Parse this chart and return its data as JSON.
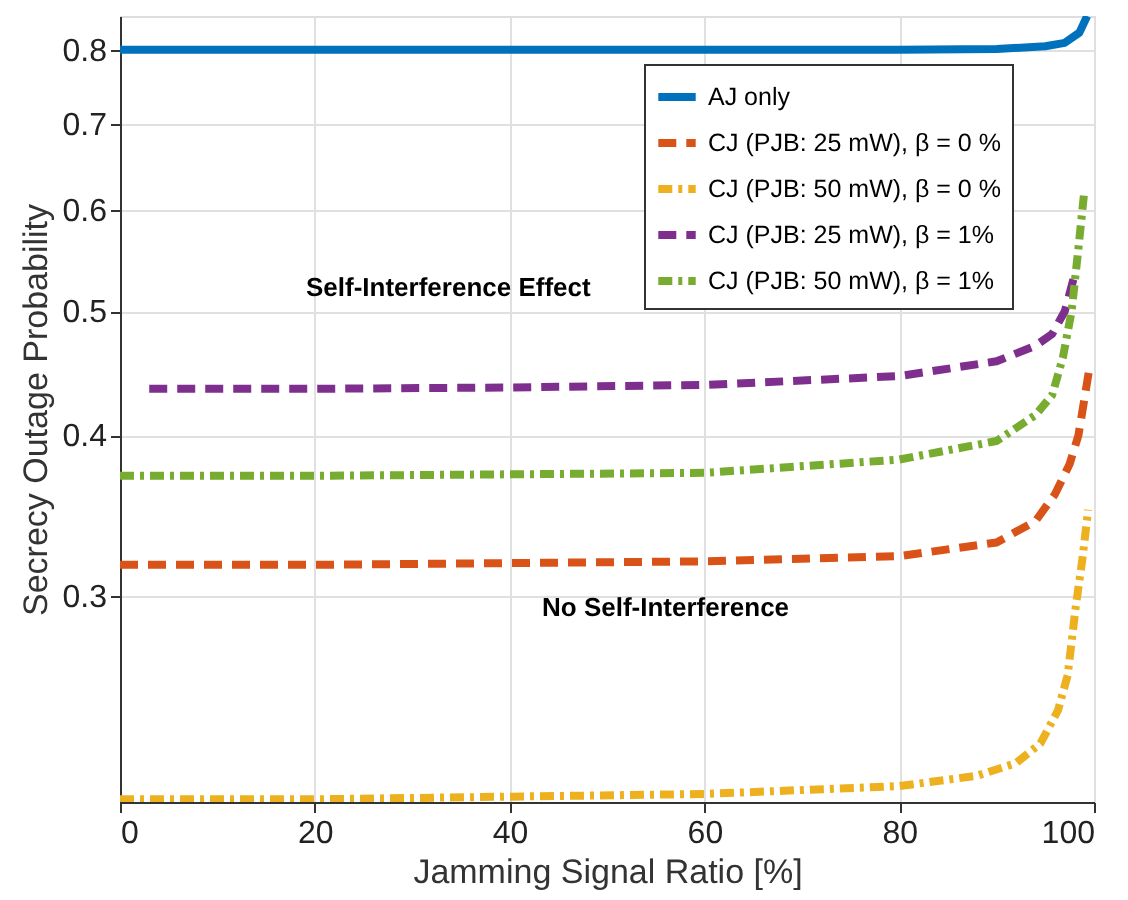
{
  "chart_data": {
    "type": "line",
    "xlabel": "Jamming Signal Ratio [%]",
    "ylabel": "Secrecy Outage Probability",
    "xlim": [
      0,
      100
    ],
    "xticks": [
      0,
      20,
      40,
      60,
      80,
      100
    ],
    "ylim": [
      0.207,
      0.85
    ],
    "yticks": [
      0.3,
      0.4,
      0.5,
      0.6,
      0.7,
      0.8
    ],
    "log": "y",
    "grid": true,
    "legend": "top right",
    "series": [
      {
        "name": "AJ only",
        "color": "#0072bd",
        "line_style": "solid",
        "x": [
          0,
          20,
          40,
          60,
          80,
          90,
          95,
          97,
          98.5,
          99.3
        ],
        "values": [
          0.8,
          0.8,
          0.8,
          0.8,
          0.8,
          0.801,
          0.805,
          0.81,
          0.825,
          0.85
        ]
      },
      {
        "name": "CJ (PJB: 25 mW), β = 0 %",
        "color": "#d95319",
        "line_style": "dashed",
        "x": [
          0,
          20,
          40,
          60,
          80,
          90,
          94,
          96,
          97.5,
          98.4,
          99.5
        ],
        "values": [
          0.317,
          0.317,
          0.318,
          0.319,
          0.322,
          0.33,
          0.343,
          0.36,
          0.38,
          0.4,
          0.45
        ]
      },
      {
        "name": "CJ (PJB: 50 mW), β = 0 %",
        "color": "#edb120",
        "line_style": "dashdot",
        "x": [
          0,
          20,
          40,
          60,
          80,
          88,
          92,
          94.5,
          96.3,
          97.3,
          98.1,
          98.8,
          99.4
        ],
        "values": [
          0.208,
          0.208,
          0.209,
          0.21,
          0.213,
          0.217,
          0.222,
          0.23,
          0.244,
          0.26,
          0.293,
          0.32,
          0.35
        ]
      },
      {
        "name": "CJ (PJB: 25 mW), β = 1%",
        "color": "#7e2f8e",
        "line_style": "dashed",
        "x": [
          3,
          20,
          40,
          60,
          80,
          90,
          94,
          95.7,
          97,
          97.9
        ],
        "values": [
          0.435,
          0.435,
          0.436,
          0.438,
          0.445,
          0.457,
          0.47,
          0.48,
          0.5,
          0.53
        ]
      },
      {
        "name": "CJ (PJB: 50 mW), β = 1%",
        "color": "#77ac30",
        "line_style": "dashdot",
        "x": [
          0,
          20,
          40,
          60,
          80,
          90,
          94,
          95.7,
          96.8,
          97.7,
          98.4,
          99
        ],
        "values": [
          0.372,
          0.372,
          0.373,
          0.374,
          0.383,
          0.396,
          0.415,
          0.43,
          0.46,
          0.5,
          0.56,
          0.62
        ]
      }
    ],
    "annotations": [
      "Self-Interference Effect",
      "No Self-Interference"
    ]
  }
}
